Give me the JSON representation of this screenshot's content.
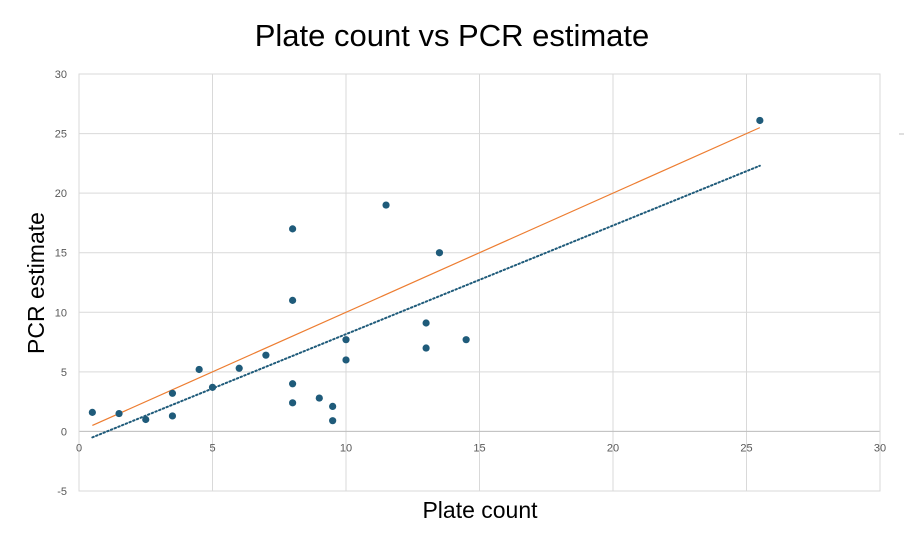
{
  "chart_data": {
    "type": "scatter",
    "title": "Plate count vs PCR estimate",
    "xlabel": "Plate count",
    "ylabel": "PCR estimate",
    "xlim": [
      0,
      30
    ],
    "ylim": [
      -5,
      30
    ],
    "x_ticks": [
      0,
      5,
      10,
      15,
      20,
      25,
      30
    ],
    "y_ticks": [
      -5,
      0,
      5,
      10,
      15,
      20,
      25,
      30
    ],
    "grid": true,
    "legend": "none",
    "series": [
      {
        "kind": "points",
        "color": "#1f5b7a",
        "points": [
          {
            "x": 0.5,
            "y": 1.6
          },
          {
            "x": 1.5,
            "y": 1.5
          },
          {
            "x": 2.5,
            "y": 1.0
          },
          {
            "x": 3.5,
            "y": 3.2
          },
          {
            "x": 3.5,
            "y": 1.3
          },
          {
            "x": 4.5,
            "y": 5.2
          },
          {
            "x": 5.0,
            "y": 3.7
          },
          {
            "x": 6.0,
            "y": 5.3
          },
          {
            "x": 7.0,
            "y": 6.4
          },
          {
            "x": 8.0,
            "y": 17.0
          },
          {
            "x": 8.0,
            "y": 11.0
          },
          {
            "x": 8.0,
            "y": 4.0
          },
          {
            "x": 8.0,
            "y": 2.4
          },
          {
            "x": 9.0,
            "y": 2.8
          },
          {
            "x": 9.5,
            "y": 2.1
          },
          {
            "x": 9.5,
            "y": 0.9
          },
          {
            "x": 10.0,
            "y": 7.7
          },
          {
            "x": 10.0,
            "y": 6.0
          },
          {
            "x": 11.5,
            "y": 19.0
          },
          {
            "x": 13.0,
            "y": 9.1
          },
          {
            "x": 13.0,
            "y": 7.0
          },
          {
            "x": 13.5,
            "y": 15.0
          },
          {
            "x": 14.5,
            "y": 7.7
          },
          {
            "x": 25.5,
            "y": 26.1
          }
        ]
      },
      {
        "kind": "line",
        "style": "solid",
        "color": "#ed7d31",
        "points": [
          {
            "x": 0.5,
            "y": 0.5
          },
          {
            "x": 25.5,
            "y": 25.5
          }
        ]
      },
      {
        "kind": "line",
        "style": "dotted",
        "color": "#1f5b7a",
        "points": [
          {
            "x": 0.5,
            "y": -0.5
          },
          {
            "x": 25.5,
            "y": 22.3
          }
        ]
      }
    ]
  }
}
